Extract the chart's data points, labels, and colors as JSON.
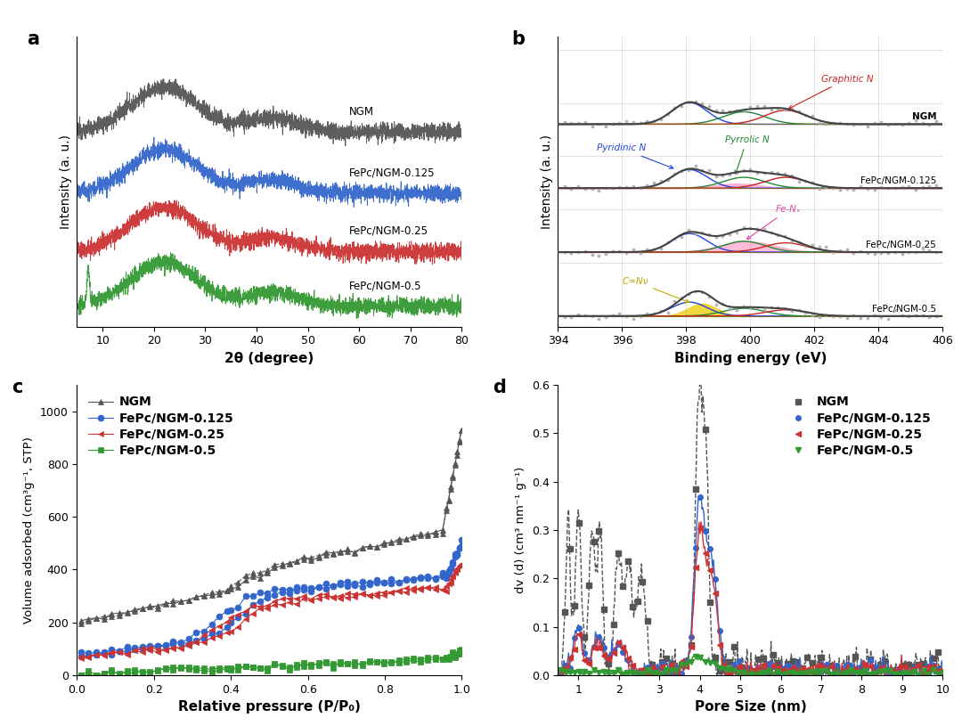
{
  "panel_a": {
    "title": "a",
    "xlabel": "2θ (degree)",
    "ylabel": "Intensity (a. u.)",
    "xlim": [
      5,
      80
    ],
    "labels": [
      "NGM",
      "FePc/NGM-0.125",
      "FePc/NGM-0.25",
      "FePc/NGM-0.5"
    ],
    "colors": [
      "#555555",
      "#3366cc",
      "#cc3333",
      "#339933"
    ],
    "offsets": [
      0.55,
      0.37,
      0.2,
      0.04
    ]
  },
  "panel_b": {
    "title": "b",
    "xlabel": "Binding energy (eV)",
    "ylabel": "Intensity (a. u.)",
    "xlim": [
      394,
      406
    ],
    "xticks": [
      394,
      396,
      398,
      400,
      402,
      404,
      406
    ],
    "labels": [
      "NGM",
      "FePc/NGM-0.125",
      "FePc/NGM-0.25",
      "FePc/NGM-0.5"
    ],
    "offsets": [
      0.72,
      0.48,
      0.24,
      0.0
    ]
  },
  "panel_c": {
    "title": "c",
    "xlabel": "Relative pressure (P/P₀)",
    "ylabel": "Volume adsorbed (cm³g⁻¹, STP)",
    "xlim": [
      0.0,
      1.0
    ],
    "ylim": [
      0,
      1100
    ],
    "yticks": [
      0,
      200,
      400,
      600,
      800,
      1000
    ],
    "labels": [
      "NGM",
      "FePc/NGM-0.125",
      "FePc/NGM-0.25",
      "FePc/NGM-0.5"
    ],
    "colors": [
      "#555555",
      "#3366cc",
      "#cc3333",
      "#339933"
    ],
    "markers": [
      "^",
      "o",
      "<",
      "s"
    ]
  },
  "panel_d": {
    "title": "d",
    "xlabel": "Pore Size (nm)",
    "ylabel": "dv (d) (cm³ nm⁻¹ g⁻¹)",
    "xlim": [
      0.5,
      10
    ],
    "ylim": [
      0,
      0.6
    ],
    "yticks": [
      0.0,
      0.1,
      0.2,
      0.3,
      0.4,
      0.5,
      0.6
    ],
    "xticks": [
      1,
      2,
      3,
      4,
      5,
      6,
      7,
      8,
      9,
      10
    ],
    "labels": [
      "NGM",
      "FePc/NGM-0.125",
      "FePc/NGM-0.25",
      "FePc/NGM-0.5"
    ],
    "colors": [
      "#555555",
      "#3366cc",
      "#cc3333",
      "#339933"
    ],
    "markers": [
      "s",
      "o",
      "<",
      "v"
    ]
  },
  "background_color": "#ffffff"
}
